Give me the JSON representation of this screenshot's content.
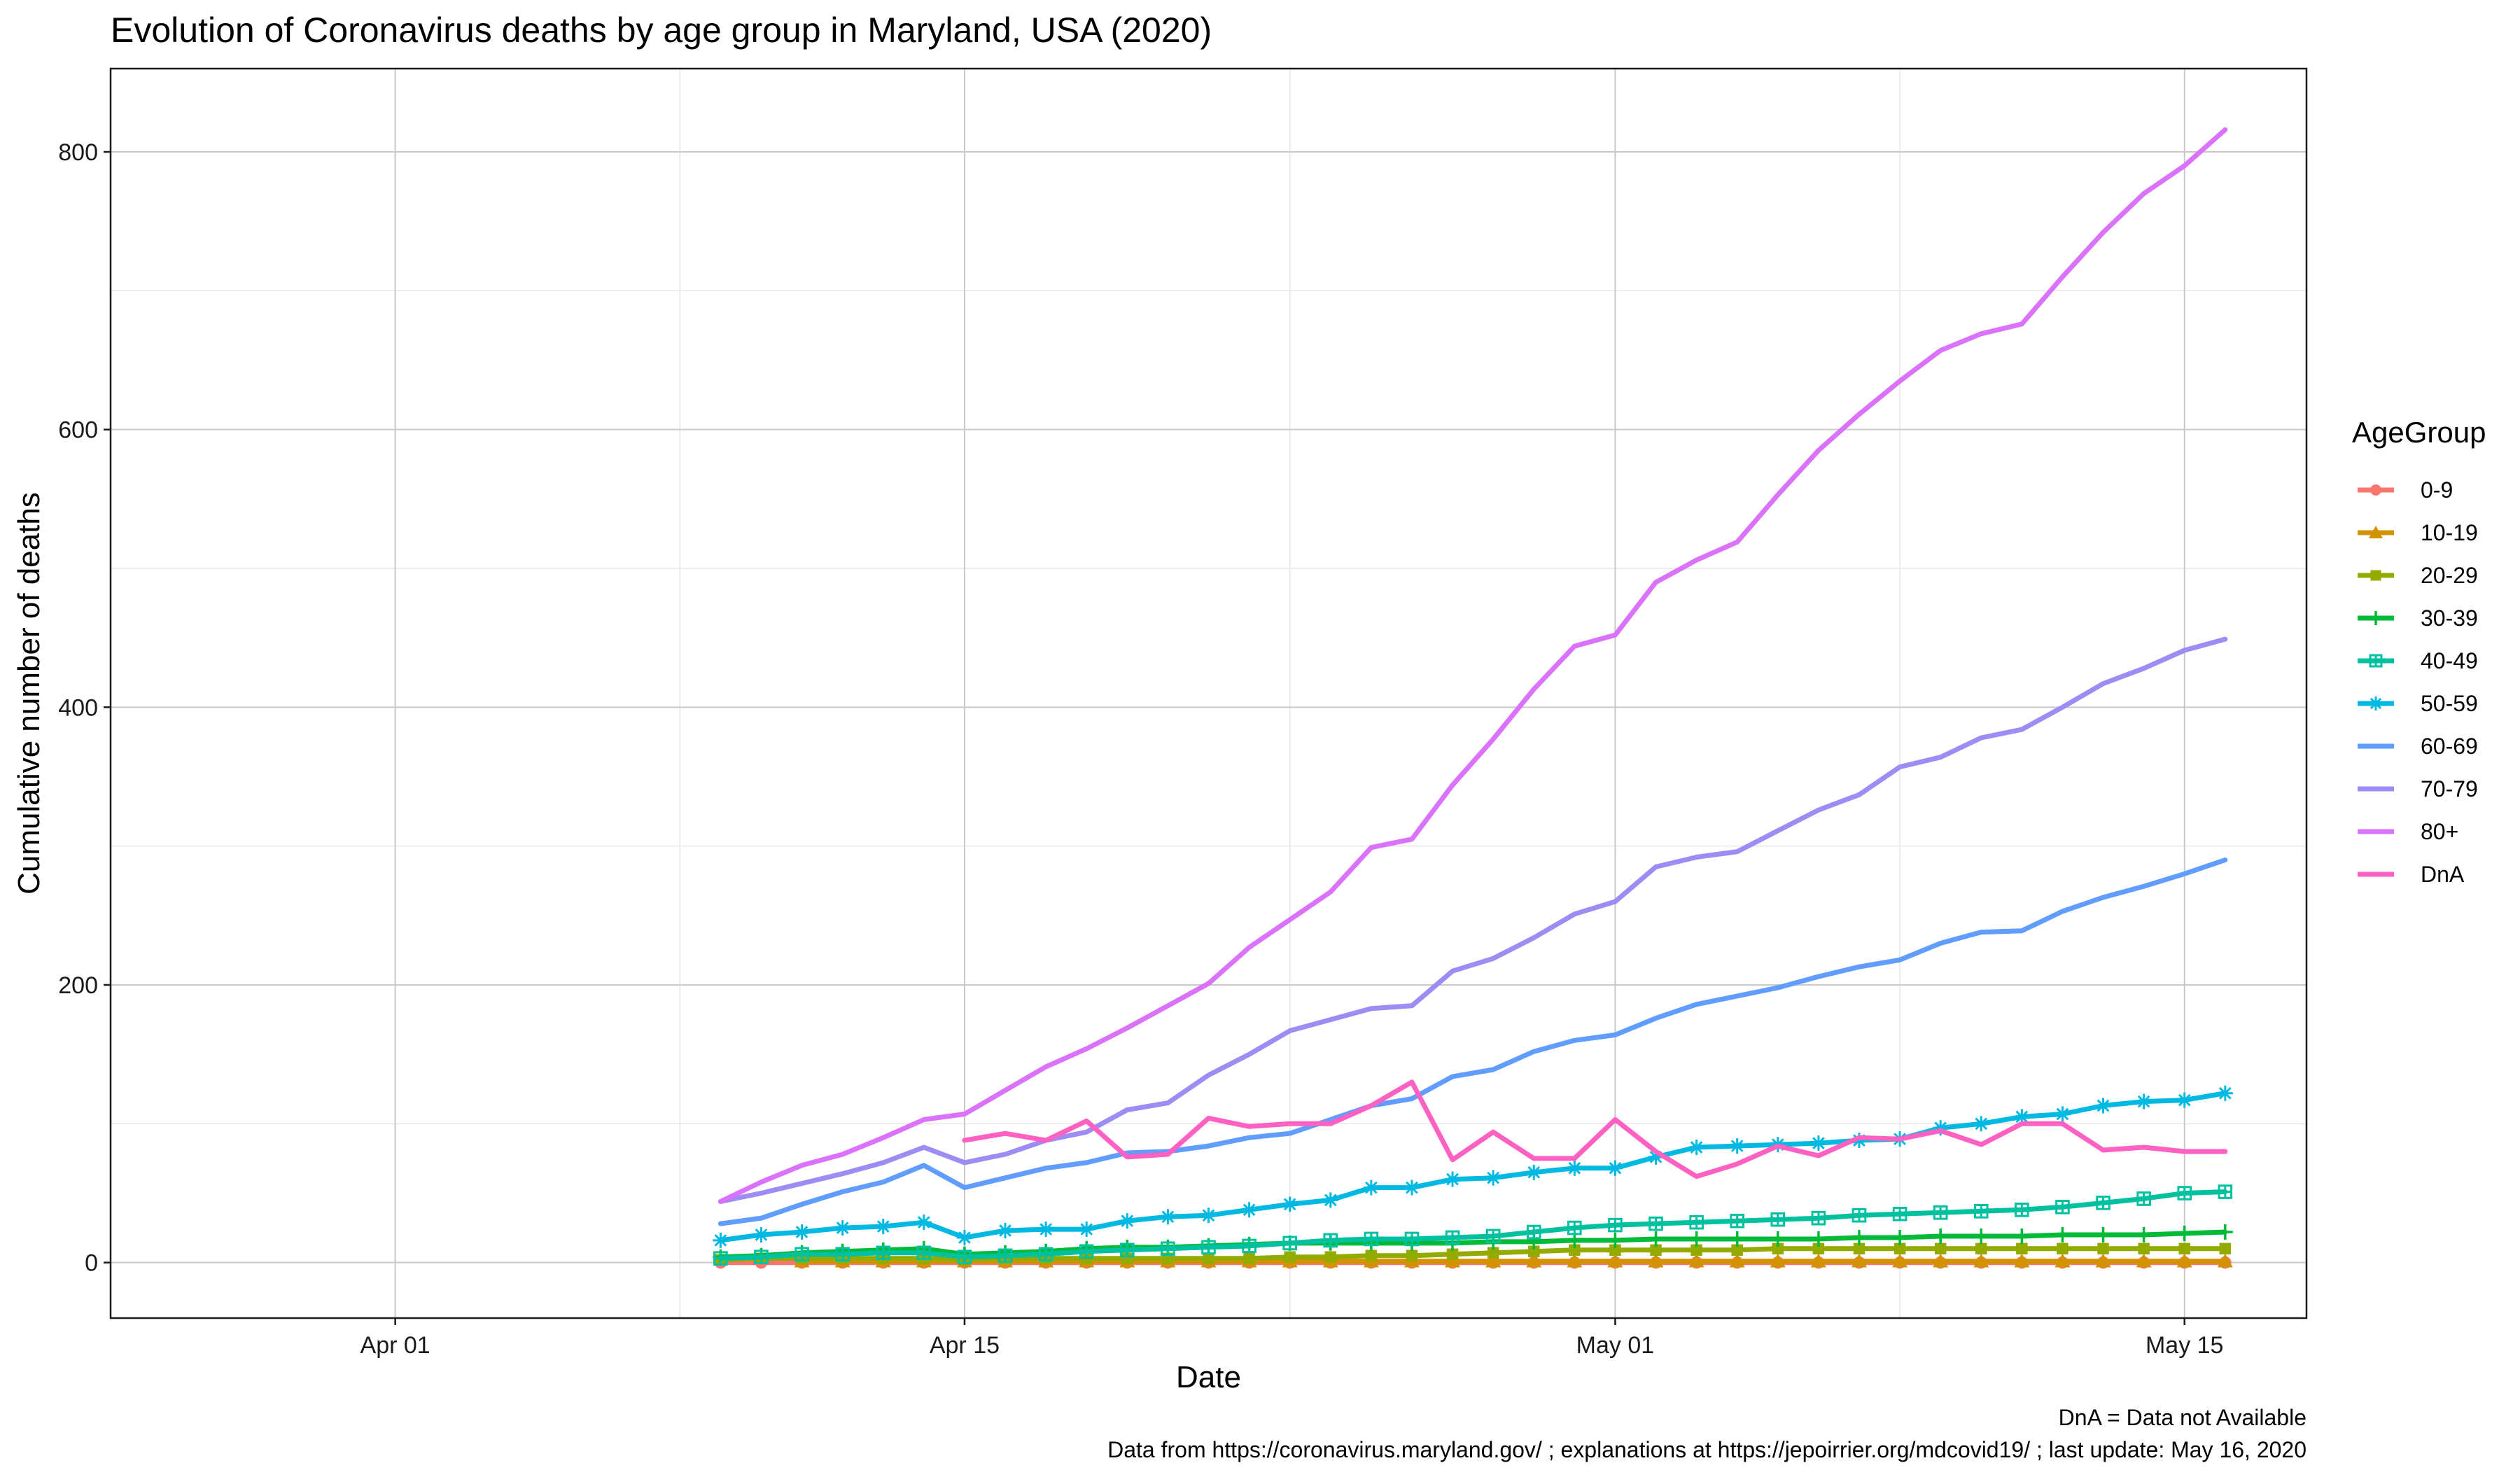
{
  "chart_data": {
    "type": "line",
    "title": "Evolution of Coronavirus deaths by age group in Maryland, USA (2020)",
    "xlabel": "Date",
    "ylabel": "Cumulative number of deaths",
    "x_ticks": [
      "Apr 01",
      "Apr 15",
      "May 01",
      "May 15"
    ],
    "x_tick_dates": [
      "2020-04-01",
      "2020-04-15",
      "2020-05-01",
      "2020-05-15"
    ],
    "xlim": [
      "2020-03-25",
      "2020-05-18"
    ],
    "y_ticks": [
      0,
      200,
      400,
      600,
      800
    ],
    "ylim": [
      -40,
      860
    ],
    "grid": true,
    "legend_title": "AgeGroup",
    "legend_position": "right",
    "caption_lines": [
      "DnA = Data not Available",
      "Data from https://coronavirus.maryland.gov/ ; explanations at https://jepoirrier.org/mdcovid19/ ; last update: May 16, 2020"
    ],
    "x": [
      "2020-04-09",
      "2020-04-10",
      "2020-04-11",
      "2020-04-12",
      "2020-04-13",
      "2020-04-14",
      "2020-04-15",
      "2020-04-16",
      "2020-04-17",
      "2020-04-18",
      "2020-04-19",
      "2020-04-20",
      "2020-04-21",
      "2020-04-22",
      "2020-04-23",
      "2020-04-24",
      "2020-04-25",
      "2020-04-26",
      "2020-04-27",
      "2020-04-28",
      "2020-04-29",
      "2020-04-30",
      "2020-05-01",
      "2020-05-02",
      "2020-05-03",
      "2020-05-04",
      "2020-05-05",
      "2020-05-06",
      "2020-05-07",
      "2020-05-08",
      "2020-05-09",
      "2020-05-10",
      "2020-05-11",
      "2020-05-12",
      "2020-05-13",
      "2020-05-14",
      "2020-05-15",
      "2020-05-16"
    ],
    "series": [
      {
        "name": "0-9",
        "color": "#F8766D",
        "marker": "circle",
        "values": [
          0,
          0,
          0,
          0,
          0,
          0,
          0,
          0,
          0,
          0,
          0,
          0,
          0,
          0,
          0,
          0,
          0,
          0,
          0,
          0,
          0,
          0,
          0,
          0,
          0,
          0,
          0,
          0,
          0,
          0,
          0,
          0,
          0,
          0,
          0,
          0,
          0,
          0
        ]
      },
      {
        "name": "10-19",
        "color": "#D39200",
        "marker": "triangle",
        "values": [
          null,
          null,
          1,
          1,
          1,
          1,
          1,
          1,
          1,
          1,
          1,
          1,
          1,
          1,
          1,
          1,
          1,
          1,
          1,
          1,
          1,
          1,
          1,
          1,
          1,
          1,
          1,
          1,
          1,
          1,
          1,
          1,
          1,
          1,
          1,
          1,
          1,
          1
        ]
      },
      {
        "name": "20-29",
        "color": "#93AA00",
        "marker": "square",
        "values": [
          2,
          3,
          3,
          3,
          3,
          3,
          2,
          3,
          3,
          3,
          3,
          3,
          3,
          3,
          4,
          4,
          5,
          5,
          6,
          7,
          8,
          9,
          9,
          9,
          9,
          9,
          10,
          10,
          10,
          10,
          10,
          10,
          10,
          10,
          10,
          10,
          10,
          10
        ]
      },
      {
        "name": "30-39",
        "color": "#00BA38",
        "marker": "plus",
        "values": [
          4,
          5,
          7,
          8,
          9,
          10,
          6,
          7,
          8,
          10,
          11,
          11,
          12,
          13,
          14,
          14,
          14,
          14,
          14,
          15,
          15,
          16,
          16,
          17,
          17,
          17,
          17,
          17,
          18,
          18,
          19,
          19,
          19,
          20,
          20,
          20,
          21,
          22
        ]
      },
      {
        "name": "40-49",
        "color": "#00C19F",
        "marker": "boxcross",
        "values": [
          3,
          4,
          6,
          6,
          7,
          7,
          4,
          5,
          6,
          8,
          9,
          10,
          11,
          12,
          14,
          16,
          17,
          17,
          18,
          19,
          22,
          25,
          27,
          28,
          29,
          30,
          31,
          32,
          34,
          35,
          36,
          37,
          38,
          40,
          43,
          46,
          50,
          51
        ]
      },
      {
        "name": "50-59",
        "color": "#00B9E3",
        "marker": "asterisk",
        "values": [
          16,
          20,
          22,
          25,
          26,
          29,
          18,
          23,
          24,
          24,
          30,
          33,
          34,
          38,
          42,
          45,
          54,
          54,
          60,
          61,
          65,
          68,
          68,
          76,
          83,
          84,
          85,
          86,
          88,
          89,
          97,
          100,
          105,
          107,
          113,
          116,
          117,
          122
        ]
      },
      {
        "name": "60-69",
        "color": "#619CFF",
        "marker": "none",
        "values": [
          28,
          32,
          42,
          51,
          58,
          70,
          54,
          61,
          68,
          72,
          79,
          80,
          84,
          90,
          93,
          103,
          113,
          118,
          134,
          139,
          152,
          160,
          164,
          176,
          186,
          192,
          198,
          206,
          213,
          218,
          230,
          238,
          239,
          253,
          263,
          271,
          280,
          290
        ]
      },
      {
        "name": "70-79",
        "color": "#9C8DF5",
        "marker": "none",
        "values": [
          44,
          50,
          57,
          64,
          72,
          83,
          72,
          78,
          88,
          94,
          110,
          115,
          135,
          150,
          167,
          175,
          183,
          185,
          210,
          219,
          234,
          251,
          260,
          285,
          292,
          296,
          311,
          326,
          337,
          357,
          364,
          378,
          384,
          400,
          417,
          428,
          441,
          449
        ]
      },
      {
        "name": "80+",
        "color": "#DB72FB",
        "marker": "none",
        "values": [
          44,
          58,
          70,
          78,
          90,
          103,
          107,
          124,
          141,
          154,
          169,
          185,
          201,
          227,
          247,
          267,
          299,
          305,
          344,
          377,
          413,
          444,
          452,
          490,
          506,
          519,
          553,
          585,
          611,
          635,
          657,
          669,
          676,
          710,
          742,
          770,
          790,
          816
        ]
      },
      {
        "name": "DnA",
        "color": "#FF61C3",
        "marker": "none",
        "values": [
          null,
          null,
          null,
          null,
          null,
          null,
          88,
          93,
          88,
          102,
          76,
          78,
          104,
          98,
          100,
          100,
          113,
          130,
          74,
          94,
          75,
          75,
          103,
          80,
          62,
          71,
          84,
          77,
          90,
          89,
          95,
          85,
          100,
          100,
          81,
          83,
          80,
          80
        ]
      }
    ]
  }
}
